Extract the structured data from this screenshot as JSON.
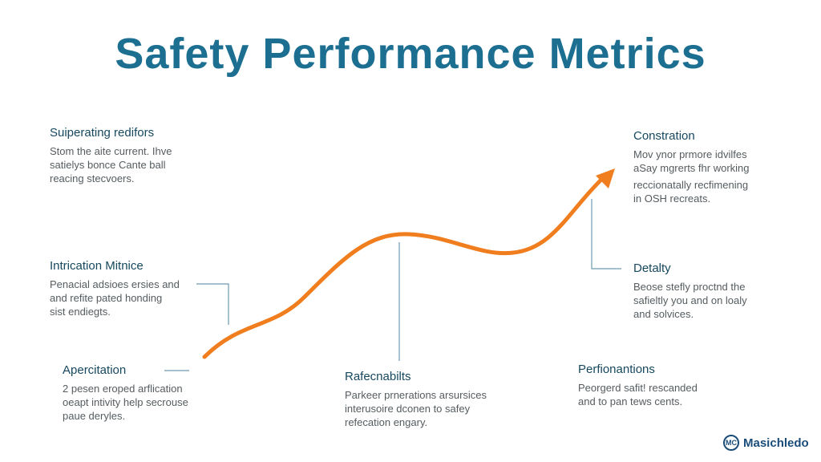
{
  "title": "Safety Performance Metrics",
  "colors": {
    "title": "#1c6f91",
    "curve": "#f07d1e",
    "connector": "#6d9bb0"
  },
  "blocks": [
    {
      "heading": "Suiperating redifors",
      "lines": [
        "Stom the aite current. Ihve",
        "satielys bonce Cante ball",
        "reacing stecvoers."
      ]
    },
    {
      "heading": "Intrication Mitnice",
      "lines": [
        "Penacial adsioes ersies and",
        "and refite pated honding",
        "sist endiegts."
      ]
    },
    {
      "heading": "Apercitation",
      "lines": [
        "2 pesen eroped arflication",
        "oeapt intivity help secrouse",
        "paue deryles."
      ]
    },
    {
      "heading": "Rafecnabilts",
      "lines": [
        "Parkeer prnerations arsursices",
        "interusoire dconen to safey",
        "refecation engary."
      ]
    },
    {
      "heading": "Constration",
      "lines": [
        "Mov ynor prmore idvilfes",
        "aSay mgrerts fhr working",
        "reccionatally recfimening",
        "in OSH recreats."
      ]
    },
    {
      "heading": "Detalty",
      "lines": [
        "Beose stefly proctnd the",
        "safieltly you and on loaly",
        "and solvices."
      ]
    },
    {
      "heading": "Perfionantions",
      "lines": [
        "Peorgerd safit! rescanded",
        "and to pan tews cents."
      ]
    }
  ],
  "brand": {
    "icon": "mc-logo-icon",
    "name": "Masichledo",
    "mark": "MC"
  }
}
